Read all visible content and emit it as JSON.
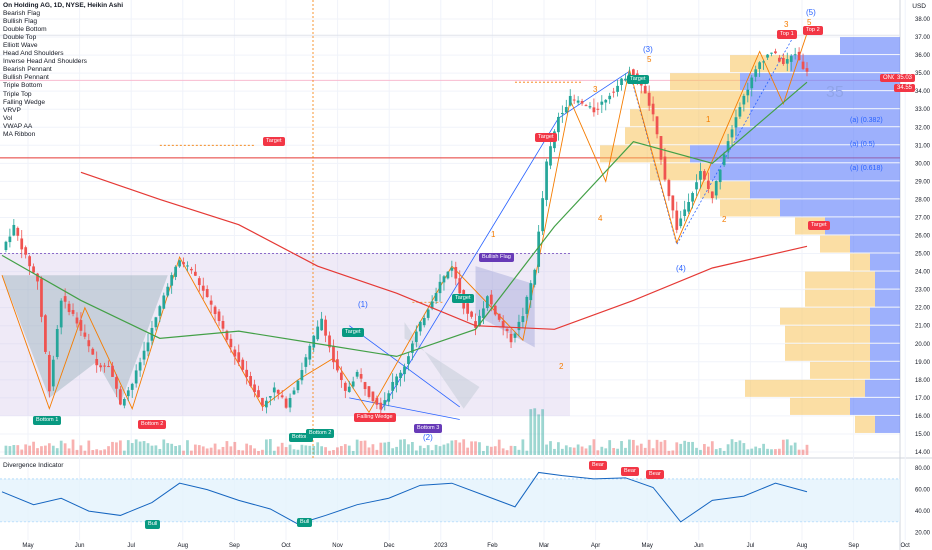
{
  "title": "On Holding AG, 1D, NYSE, Heikin Ashi",
  "indicators": [
    "Bearish Flag",
    "Bullish Flag",
    "Double Bottom",
    "Double Top",
    "Elliott Wave",
    "Head And Shoulders",
    "Inverse Head And Shoulders",
    "Bearish Pennant",
    "Bullish Pennant",
    "Triple Bottom",
    "Triple Top",
    "Falling Wedge",
    "VRVP",
    "Vol",
    "VWAP AA",
    "MA Ribbon"
  ],
  "currency": "USD",
  "last_price_label": "35.03",
  "ticker_badge": "ONON",
  "second_price_label": "34.55",
  "level_label": "35",
  "colors": {
    "up": "#26a69a",
    "down": "#ef5350",
    "ma_red": "#e53935",
    "ma_green": "#43a047",
    "wedge": "#2962ff",
    "vp_blue": "#5b7cfa",
    "vp_yellow": "#f7c35a",
    "divergence": "#1565c0"
  },
  "labels": {
    "bottom1": "Bottom 1",
    "bottom2": "Bottom 2",
    "bottom_a": "Bottom",
    "bottom_b": "Bottom 2",
    "bottom3": "Bottom 3",
    "falling_wedge": "Falling Wedge",
    "bullish_flag": "Bullish Flag",
    "target": "Target",
    "top1": "Top 1",
    "top2": "Top 2",
    "bear": "Bear",
    "bull": "Bull",
    "fib1": "(a) (0.382)",
    "fib2": "(a) (0.5)",
    "fib3": "(a) (0.618)"
  },
  "elliott": {
    "w1": "(1)",
    "w2": "(2)",
    "w3": "(3)",
    "w4": "(4)",
    "w5": "(5)",
    "o1": "1",
    "o2": "2",
    "o3": "3",
    "o4": "4",
    "o5": "5"
  },
  "divergence_title": "Divergence Indicator",
  "chart_data": {
    "type": "candlestick",
    "ylim": [
      14,
      38.5
    ],
    "y_ticks": [
      14,
      15,
      16,
      17,
      18,
      19,
      20,
      21,
      22,
      23,
      24,
      25,
      26,
      27,
      28,
      29,
      30,
      31,
      32,
      33,
      34,
      35,
      36,
      37,
      38
    ],
    "x_labels": [
      "May",
      "Jun",
      "Jul",
      "Aug",
      "Sep",
      "Oct",
      "Nov",
      "Dec",
      "2023",
      "Feb",
      "Mar",
      "Apr",
      "May",
      "Jun",
      "Jul",
      "Aug",
      "Sep",
      "Oct"
    ],
    "price_path": [
      [
        0,
        25.2
      ],
      [
        3,
        26.5
      ],
      [
        6,
        24.8
      ],
      [
        9,
        23.5
      ],
      [
        12,
        17.5
      ],
      [
        15,
        22.5
      ],
      [
        18,
        21.6
      ],
      [
        21,
        20.3
      ],
      [
        24,
        18.8
      ],
      [
        27,
        18.9
      ],
      [
        30,
        16.7
      ],
      [
        33,
        17.8
      ],
      [
        36,
        19.6
      ],
      [
        39,
        21.4
      ],
      [
        42,
        23.3
      ],
      [
        45,
        24.6
      ],
      [
        48,
        24.1
      ],
      [
        51,
        22.9
      ],
      [
        54,
        21.7
      ],
      [
        57,
        20.2
      ],
      [
        60,
        19.0
      ],
      [
        63,
        17.8
      ],
      [
        66,
        16.6
      ],
      [
        69,
        17.5
      ],
      [
        72,
        16.6
      ],
      [
        75,
        18.0
      ],
      [
        78,
        19.8
      ],
      [
        81,
        21.4
      ],
      [
        84,
        19.0
      ],
      [
        87,
        17.3
      ],
      [
        90,
        18.4
      ],
      [
        93,
        17.2
      ],
      [
        96,
        16.5
      ],
      [
        99,
        17.8
      ],
      [
        102,
        18.8
      ],
      [
        105,
        20.6
      ],
      [
        108,
        22.0
      ],
      [
        111,
        23.4
      ],
      [
        114,
        24.3
      ],
      [
        117,
        22.1
      ],
      [
        120,
        21.0
      ],
      [
        123,
        22.6
      ],
      [
        126,
        21.3
      ],
      [
        129,
        20.2
      ],
      [
        132,
        21.6
      ],
      [
        135,
        24.2
      ],
      [
        138,
        30.0
      ],
      [
        141,
        32.6
      ],
      [
        144,
        33.6
      ],
      [
        147,
        33.3
      ],
      [
        150,
        32.9
      ],
      [
        153,
        33.6
      ],
      [
        156,
        34.3
      ],
      [
        159,
        35.1
      ],
      [
        162,
        34.4
      ],
      [
        165,
        32.6
      ],
      [
        168,
        29.2
      ],
      [
        171,
        26.4
      ],
      [
        174,
        28.0
      ],
      [
        177,
        29.5
      ],
      [
        180,
        28.1
      ],
      [
        183,
        30.6
      ],
      [
        186,
        32.7
      ],
      [
        189,
        34.2
      ],
      [
        192,
        35.6
      ],
      [
        195,
        36.2
      ],
      [
        198,
        35.5
      ],
      [
        201,
        36.1
      ],
      [
        204,
        35.0
      ]
    ],
    "ma_red": [
      [
        20,
        29.5
      ],
      [
        40,
        28.0
      ],
      [
        60,
        26.6
      ],
      [
        80,
        24.3
      ],
      [
        100,
        22.8
      ],
      [
        120,
        21.0
      ],
      [
        140,
        20.8
      ],
      [
        160,
        22.4
      ],
      [
        180,
        24.2
      ],
      [
        204,
        25.4
      ]
    ],
    "ma_green": [
      [
        0,
        24.9
      ],
      [
        20,
        22.4
      ],
      [
        40,
        20.3
      ],
      [
        60,
        20.7
      ],
      [
        80,
        20.0
      ],
      [
        100,
        19.3
      ],
      [
        120,
        20.8
      ],
      [
        140,
        26.5
      ],
      [
        160,
        31.2
      ],
      [
        180,
        30.0
      ],
      [
        204,
        34.5
      ]
    ],
    "volume_profile": [
      {
        "price": 36.5,
        "blue": 60,
        "yellow": 0
      },
      {
        "price": 35.5,
        "blue": 110,
        "yellow": 60
      },
      {
        "price": 34.5,
        "blue": 160,
        "yellow": 70
      },
      {
        "price": 33.5,
        "blue": 150,
        "yellow": 110
      },
      {
        "price": 32.5,
        "blue": 150,
        "yellow": 120
      },
      {
        "price": 31.5,
        "blue": 165,
        "yellow": 110
      },
      {
        "price": 30.5,
        "blue": 210,
        "yellow": 90
      },
      {
        "price": 29.5,
        "blue": 190,
        "yellow": 60
      },
      {
        "price": 28.5,
        "blue": 150,
        "yellow": 50
      },
      {
        "price": 27.5,
        "blue": 120,
        "yellow": 60
      },
      {
        "price": 26.5,
        "blue": 75,
        "yellow": 30
      },
      {
        "price": 25.5,
        "blue": 50,
        "yellow": 30
      },
      {
        "price": 24.5,
        "blue": 30,
        "yellow": 20
      },
      {
        "price": 23.5,
        "blue": 25,
        "yellow": 70
      },
      {
        "price": 22.5,
        "blue": 25,
        "yellow": 70
      },
      {
        "price": 21.5,
        "blue": 30,
        "yellow": 90
      },
      {
        "price": 20.5,
        "blue": 30,
        "yellow": 85
      },
      {
        "price": 19.5,
        "blue": 30,
        "yellow": 85
      },
      {
        "price": 18.5,
        "blue": 30,
        "yellow": 60
      },
      {
        "price": 17.5,
        "blue": 35,
        "yellow": 120
      },
      {
        "price": 16.5,
        "blue": 50,
        "yellow": 60
      },
      {
        "price": 15.5,
        "blue": 25,
        "yellow": 20
      }
    ],
    "divergence": {
      "y_ticks": [
        20,
        40,
        60,
        80
      ],
      "ylim": [
        15,
        82
      ],
      "series": [
        [
          0,
          58
        ],
        [
          8,
          46
        ],
        [
          15,
          52
        ],
        [
          22,
          40
        ],
        [
          30,
          36
        ],
        [
          38,
          48
        ],
        [
          45,
          66
        ],
        [
          52,
          60
        ],
        [
          60,
          50
        ],
        [
          68,
          42
        ],
        [
          75,
          28
        ],
        [
          82,
          36
        ],
        [
          90,
          46
        ],
        [
          98,
          52
        ],
        [
          106,
          64
        ],
        [
          114,
          66
        ],
        [
          122,
          55
        ],
        [
          130,
          44
        ],
        [
          136,
          76
        ],
        [
          142,
          73
        ],
        [
          150,
          70
        ],
        [
          158,
          71
        ],
        [
          165,
          62
        ],
        [
          172,
          30
        ],
        [
          180,
          50
        ],
        [
          188,
          54
        ],
        [
          196,
          66
        ],
        [
          204,
          58
        ]
      ]
    }
  }
}
